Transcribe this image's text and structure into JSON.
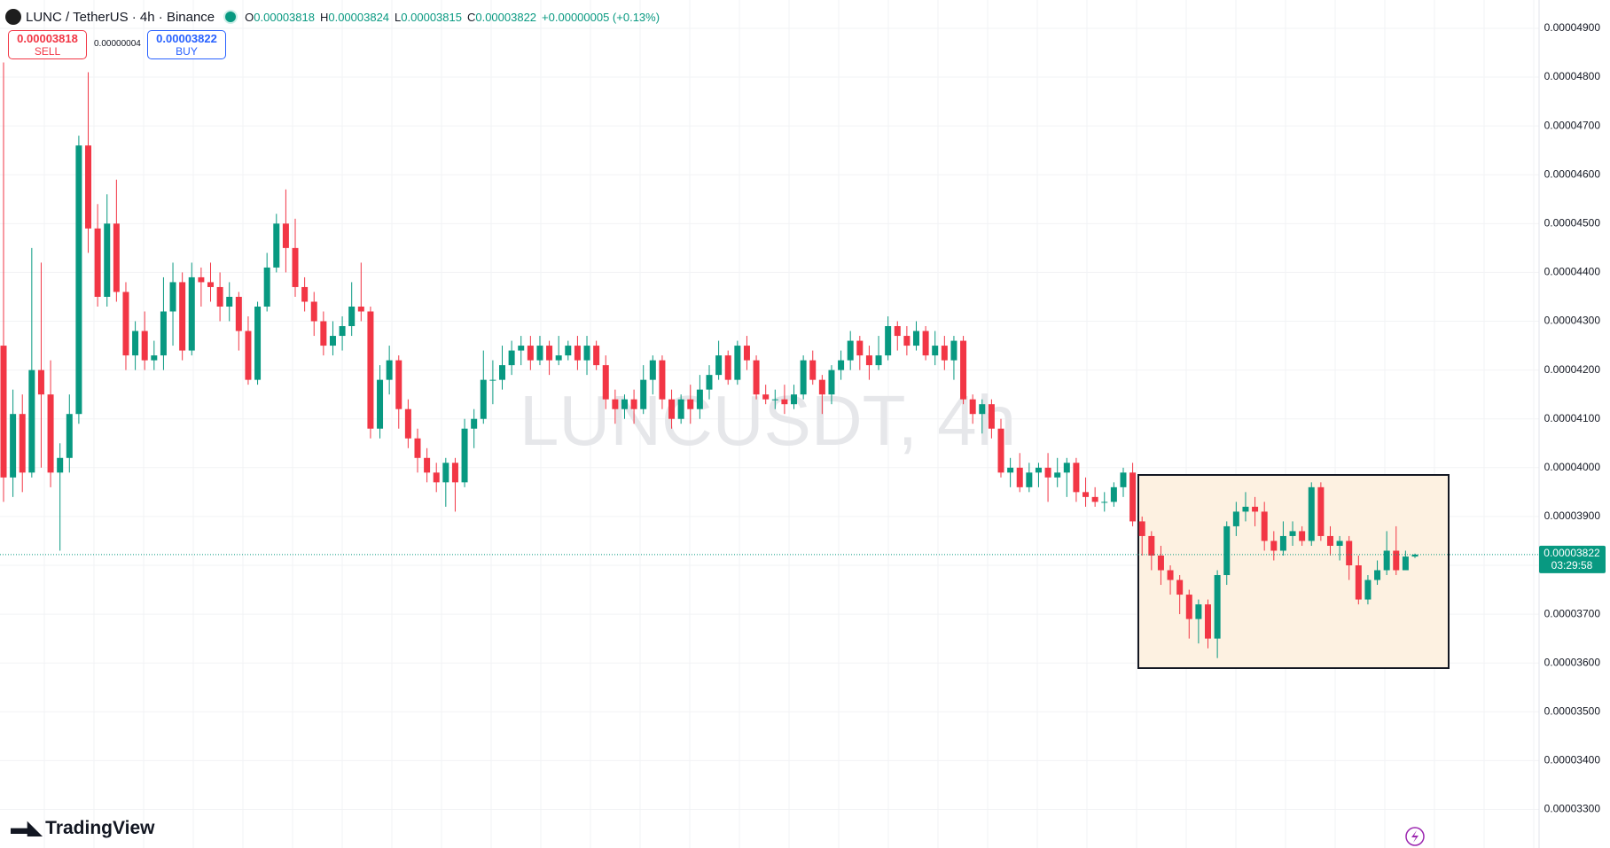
{
  "header": {
    "symbol": "LUNC / TetherUS · 4h · Binance",
    "ohlc": [
      {
        "label": "O",
        "value": "0.00003818"
      },
      {
        "label": "H",
        "value": "0.00003824"
      },
      {
        "label": "L",
        "value": "0.00003815"
      },
      {
        "label": "C",
        "value": "0.00003822"
      }
    ],
    "change": "+0.00000005 (+0.13%)",
    "sell": {
      "price": "0.00003818",
      "label": "SELL"
    },
    "spread": "0.00000004",
    "buy": {
      "price": "0.00003822",
      "label": "BUY"
    }
  },
  "watermark": "LUNCUSDT, 4h",
  "logo": "TradingView",
  "chart_data": {
    "type": "candlestick",
    "up_color": "#089981",
    "down_color": "#f23645",
    "grid": true,
    "ylim": [
      3.221e-05,
      4.958e-05
    ],
    "yticks": [
      {
        "value": 3.3e-05,
        "label": "0.00003300"
      },
      {
        "value": 3.4e-05,
        "label": "0.00003400"
      },
      {
        "value": 3.5e-05,
        "label": "0.00003500"
      },
      {
        "value": 3.6e-05,
        "label": "0.00003600"
      },
      {
        "value": 3.7e-05,
        "label": "0.00003700"
      },
      {
        "value": 3.8e-05,
        "label": "0.00003800"
      },
      {
        "value": 3.9e-05,
        "label": "0.00003900"
      },
      {
        "value": 4e-05,
        "label": "0.00004000"
      },
      {
        "value": 4.1e-05,
        "label": "0.00004100"
      },
      {
        "value": 4.2e-05,
        "label": "0.00004200"
      },
      {
        "value": 4.3e-05,
        "label": "0.00004300"
      },
      {
        "value": 4.4e-05,
        "label": "0.00004400"
      },
      {
        "value": 4.5e-05,
        "label": "0.00004500"
      },
      {
        "value": 4.6e-05,
        "label": "0.00004600"
      },
      {
        "value": 4.7e-05,
        "label": "0.00004700"
      },
      {
        "value": 4.8e-05,
        "label": "0.00004800"
      },
      {
        "value": 4.9e-05,
        "label": "0.00004900"
      }
    ],
    "last_price": {
      "value": 3.822e-05,
      "label": "0.00003822",
      "countdown": "03:29:58"
    },
    "open": [
      4.25e-05,
      3.98e-05,
      4.11e-05,
      3.99e-05,
      4.2e-05,
      4.15e-05,
      3.99e-05,
      4.02e-05,
      4.11e-05,
      4.66e-05,
      4.49e-05,
      4.35e-05,
      4.5e-05,
      4.36e-05,
      4.23e-05,
      4.28e-05,
      4.22e-05,
      4.23e-05,
      4.32e-05,
      4.38e-05,
      4.24e-05,
      4.39e-05,
      4.38e-05,
      4.37e-05,
      4.33e-05,
      4.35e-05,
      4.28e-05,
      4.18e-05,
      4.33e-05,
      4.41e-05,
      4.5e-05,
      4.45e-05,
      4.37e-05,
      4.34e-05,
      4.3e-05,
      4.25e-05,
      4.27e-05,
      4.29e-05,
      4.33e-05,
      4.32e-05,
      4.08e-05,
      4.18e-05,
      4.22e-05,
      4.12e-05,
      4.06e-05,
      4.02e-05,
      3.99e-05,
      3.97e-05,
      4.01e-05,
      3.97e-05,
      4.08e-05,
      4.1e-05,
      4.18e-05,
      4.18e-05,
      4.21e-05,
      4.24e-05,
      4.25e-05,
      4.22e-05,
      4.25e-05,
      4.22e-05,
      4.23e-05,
      4.25e-05,
      4.22e-05,
      4.25e-05,
      4.21e-05,
      4.14e-05,
      4.12e-05,
      4.14e-05,
      4.12e-05,
      4.18e-05,
      4.22e-05,
      4.14e-05,
      4.1e-05,
      4.14e-05,
      4.12e-05,
      4.16e-05,
      4.19e-05,
      4.23e-05,
      4.18e-05,
      4.25e-05,
      4.22e-05,
      4.15e-05,
      4.14e-05,
      4.14e-05,
      4.13e-05,
      4.15e-05,
      4.22e-05,
      4.18e-05,
      4.15e-05,
      4.2e-05,
      4.22e-05,
      4.26e-05,
      4.23e-05,
      4.21e-05,
      4.23e-05,
      4.29e-05,
      4.27e-05,
      4.25e-05,
      4.28e-05,
      4.23e-05,
      4.25e-05,
      4.22e-05,
      4.26e-05,
      4.14e-05,
      4.11e-05,
      4.13e-05,
      4.08e-05,
      3.99e-05,
      4e-05,
      3.96e-05,
      3.99e-05,
      4e-05,
      3.98e-05,
      3.99e-05,
      4.01e-05,
      3.95e-05,
      3.94e-05,
      3.93e-05,
      3.93e-05,
      3.96e-05,
      3.99e-05,
      3.89e-05,
      3.86e-05,
      3.82e-05,
      3.79e-05,
      3.77e-05,
      3.74e-05,
      3.69e-05,
      3.72e-05,
      3.65e-05,
      3.78e-05,
      3.88e-05,
      3.91e-05,
      3.92e-05,
      3.91e-05,
      3.85e-05,
      3.83e-05,
      3.86e-05,
      3.87e-05,
      3.85e-05,
      3.96e-05,
      3.86e-05,
      3.84e-05,
      3.85e-05,
      3.8e-05,
      3.73e-05,
      3.77e-05,
      3.79e-05,
      3.83e-05,
      3.79e-05,
      3.818e-05
    ],
    "high": [
      4.83e-05,
      4.16e-05,
      4.15e-05,
      4.45e-05,
      4.42e-05,
      4.22e-05,
      4.05e-05,
      4.15e-05,
      4.68e-05,
      4.81e-05,
      4.54e-05,
      4.56e-05,
      4.59e-05,
      4.38e-05,
      4.3e-05,
      4.32e-05,
      4.26e-05,
      4.39e-05,
      4.42e-05,
      4.4e-05,
      4.42e-05,
      4.41e-05,
      4.42e-05,
      4.4e-05,
      4.38e-05,
      4.36e-05,
      4.31e-05,
      4.34e-05,
      4.44e-05,
      4.52e-05,
      4.57e-05,
      4.51e-05,
      4.39e-05,
      4.36e-05,
      4.32e-05,
      4.3e-05,
      4.31e-05,
      4.38e-05,
      4.42e-05,
      4.33e-05,
      4.21e-05,
      4.25e-05,
      4.23e-05,
      4.14e-05,
      4.08e-05,
      4.04e-05,
      4.01e-05,
      4.02e-05,
      4.02e-05,
      4.1e-05,
      4.12e-05,
      4.24e-05,
      4.22e-05,
      4.25e-05,
      4.26e-05,
      4.27e-05,
      4.27e-05,
      4.27e-05,
      4.26e-05,
      4.27e-05,
      4.26e-05,
      4.27e-05,
      4.27e-05,
      4.26e-05,
      4.23e-05,
      4.16e-05,
      4.15e-05,
      4.16e-05,
      4.21e-05,
      4.23e-05,
      4.23e-05,
      4.16e-05,
      4.15e-05,
      4.17e-05,
      4.19e-05,
      4.21e-05,
      4.26e-05,
      4.24e-05,
      4.26e-05,
      4.27e-05,
      4.23e-05,
      4.17e-05,
      4.16e-05,
      4.17e-05,
      4.17e-05,
      4.23e-05,
      4.24e-05,
      4.19e-05,
      4.21e-05,
      4.24e-05,
      4.28e-05,
      4.27e-05,
      4.25e-05,
      4.27e-05,
      4.31e-05,
      4.3e-05,
      4.29e-05,
      4.3e-05,
      4.29e-05,
      4.28e-05,
      4.27e-05,
      4.27e-05,
      4.27e-05,
      4.15e-05,
      4.14e-05,
      4.14e-05,
      4.1e-05,
      4.02e-05,
      4.03e-05,
      4.01e-05,
      4.01e-05,
      4.03e-05,
      4.02e-05,
      4.02e-05,
      4.02e-05,
      3.98e-05,
      3.96e-05,
      3.95e-05,
      3.97e-05,
      4e-05,
      4.01e-05,
      3.9e-05,
      3.87e-05,
      3.84e-05,
      3.8e-05,
      3.78e-05,
      3.75e-05,
      3.73e-05,
      3.73e-05,
      3.79e-05,
      3.89e-05,
      3.93e-05,
      3.95e-05,
      3.94e-05,
      3.93e-05,
      3.87e-05,
      3.89e-05,
      3.89e-05,
      3.88e-05,
      3.97e-05,
      3.97e-05,
      3.88e-05,
      3.86e-05,
      3.86e-05,
      3.82e-05,
      3.78e-05,
      3.81e-05,
      3.87e-05,
      3.88e-05,
      3.83e-05,
      3.824e-05
    ],
    "low": [
      3.93e-05,
      3.94e-05,
      3.95e-05,
      3.98e-05,
      4e-05,
      3.96e-05,
      3.83e-05,
      3.99e-05,
      4.09e-05,
      4.44e-05,
      4.33e-05,
      4.33e-05,
      4.34e-05,
      4.2e-05,
      4.2e-05,
      4.2e-05,
      4.2e-05,
      4.2e-05,
      4.25e-05,
      4.22e-05,
      4.23e-05,
      4.33e-05,
      4.34e-05,
      4.3e-05,
      4.3e-05,
      4.24e-05,
      4.17e-05,
      4.17e-05,
      4.32e-05,
      4.4e-05,
      4.4e-05,
      4.35e-05,
      4.32e-05,
      4.27e-05,
      4.23e-05,
      4.23e-05,
      4.24e-05,
      4.27e-05,
      4.3e-05,
      4.06e-05,
      4.06e-05,
      4.15e-05,
      4.08e-05,
      4.04e-05,
      3.99e-05,
      3.97e-05,
      3.95e-05,
      3.92e-05,
      3.91e-05,
      3.96e-05,
      4.04e-05,
      4.09e-05,
      4.13e-05,
      4.16e-05,
      4.19e-05,
      4.21e-05,
      4.2e-05,
      4.21e-05,
      4.19e-05,
      4.21e-05,
      4.22e-05,
      4.2e-05,
      4.19e-05,
      4.2e-05,
      4.12e-05,
      4.09e-05,
      4.1e-05,
      4.09e-05,
      4.11e-05,
      4.15e-05,
      4.12e-05,
      4.08e-05,
      4.09e-05,
      4.09e-05,
      4.1e-05,
      4.14e-05,
      4.18e-05,
      4.17e-05,
      4.17e-05,
      4.2e-05,
      4.14e-05,
      4.13e-05,
      4.12e-05,
      4.11e-05,
      4.12e-05,
      4.14e-05,
      4.17e-05,
      4.11e-05,
      4.13e-05,
      4.18e-05,
      4.2e-05,
      4.2e-05,
      4.18e-05,
      4.2e-05,
      4.22e-05,
      4.24e-05,
      4.23e-05,
      4.24e-05,
      4.22e-05,
      4.21e-05,
      4.2e-05,
      4.18e-05,
      4.13e-05,
      4.09e-05,
      4.07e-05,
      4.06e-05,
      3.98e-05,
      3.96e-05,
      3.95e-05,
      3.95e-05,
      3.96e-05,
      3.93e-05,
      3.96e-05,
      3.94e-05,
      3.93e-05,
      3.92e-05,
      3.92e-05,
      3.91e-05,
      3.92e-05,
      3.94e-05,
      3.88e-05,
      3.82e-05,
      3.79e-05,
      3.76e-05,
      3.74e-05,
      3.7e-05,
      3.65e-05,
      3.64e-05,
      3.63e-05,
      3.61e-05,
      3.76e-05,
      3.86e-05,
      3.89e-05,
      3.88e-05,
      3.83e-05,
      3.81e-05,
      3.82e-05,
      3.84e-05,
      3.84e-05,
      3.84e-05,
      3.85e-05,
      3.82e-05,
      3.81e-05,
      3.77e-05,
      3.72e-05,
      3.72e-05,
      3.76e-05,
      3.78e-05,
      3.78e-05,
      3.79e-05,
      3.815e-05
    ],
    "close": [
      3.98e-05,
      4.11e-05,
      3.99e-05,
      4.2e-05,
      4.15e-05,
      3.99e-05,
      4.02e-05,
      4.11e-05,
      4.66e-05,
      4.49e-05,
      4.35e-05,
      4.5e-05,
      4.36e-05,
      4.23e-05,
      4.28e-05,
      4.22e-05,
      4.23e-05,
      4.32e-05,
      4.38e-05,
      4.24e-05,
      4.39e-05,
      4.38e-05,
      4.37e-05,
      4.33e-05,
      4.35e-05,
      4.28e-05,
      4.18e-05,
      4.33e-05,
      4.41e-05,
      4.5e-05,
      4.45e-05,
      4.37e-05,
      4.34e-05,
      4.3e-05,
      4.25e-05,
      4.27e-05,
      4.29e-05,
      4.33e-05,
      4.32e-05,
      4.08e-05,
      4.18e-05,
      4.22e-05,
      4.12e-05,
      4.06e-05,
      4.02e-05,
      3.99e-05,
      3.97e-05,
      4.01e-05,
      3.97e-05,
      4.08e-05,
      4.1e-05,
      4.18e-05,
      4.18e-05,
      4.21e-05,
      4.24e-05,
      4.25e-05,
      4.22e-05,
      4.25e-05,
      4.22e-05,
      4.23e-05,
      4.25e-05,
      4.22e-05,
      4.25e-05,
      4.21e-05,
      4.14e-05,
      4.12e-05,
      4.14e-05,
      4.12e-05,
      4.18e-05,
      4.22e-05,
      4.14e-05,
      4.1e-05,
      4.14e-05,
      4.12e-05,
      4.16e-05,
      4.19e-05,
      4.23e-05,
      4.18e-05,
      4.25e-05,
      4.22e-05,
      4.15e-05,
      4.14e-05,
      4.14e-05,
      4.13e-05,
      4.15e-05,
      4.22e-05,
      4.18e-05,
      4.15e-05,
      4.2e-05,
      4.22e-05,
      4.26e-05,
      4.23e-05,
      4.21e-05,
      4.23e-05,
      4.29e-05,
      4.27e-05,
      4.25e-05,
      4.28e-05,
      4.23e-05,
      4.25e-05,
      4.22e-05,
      4.26e-05,
      4.14e-05,
      4.11e-05,
      4.13e-05,
      4.08e-05,
      3.99e-05,
      4e-05,
      3.96e-05,
      3.99e-05,
      4e-05,
      3.98e-05,
      3.99e-05,
      4.01e-05,
      3.95e-05,
      3.94e-05,
      3.93e-05,
      3.93e-05,
      3.96e-05,
      3.99e-05,
      3.89e-05,
      3.86e-05,
      3.82e-05,
      3.79e-05,
      3.77e-05,
      3.74e-05,
      3.69e-05,
      3.72e-05,
      3.65e-05,
      3.78e-05,
      3.88e-05,
      3.91e-05,
      3.92e-05,
      3.91e-05,
      3.85e-05,
      3.83e-05,
      3.86e-05,
      3.87e-05,
      3.85e-05,
      3.96e-05,
      3.86e-05,
      3.84e-05,
      3.85e-05,
      3.8e-05,
      3.73e-05,
      3.77e-05,
      3.79e-05,
      3.83e-05,
      3.79e-05,
      3.818e-05,
      3.822e-05
    ]
  }
}
